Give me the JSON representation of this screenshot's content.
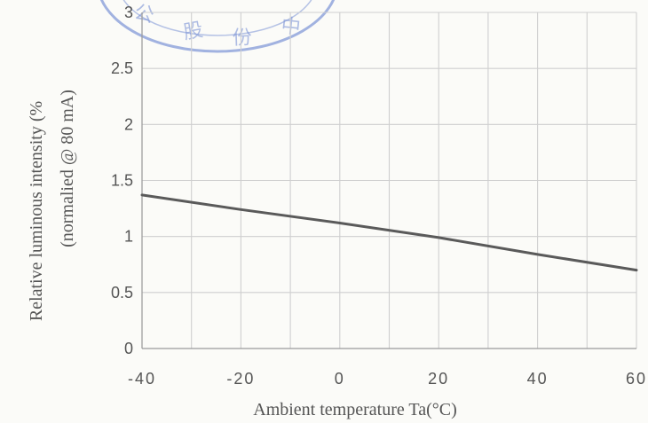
{
  "chart_data": {
    "type": "line",
    "title": "",
    "xlabel": "Ambient temperature Ta(°C)",
    "ylabel_line1": "Relative luminous intensity (%",
    "ylabel_line2": "(normalied @ 80 mA)",
    "xlim": [
      -40,
      60
    ],
    "ylim": [
      0,
      3
    ],
    "x_ticks": [
      -40,
      -20,
      0,
      20,
      40,
      60
    ],
    "y_ticks": [
      0,
      0.5,
      1,
      1.5,
      2,
      2.5,
      3
    ],
    "x_tick_labels": [
      "-40",
      "-20",
      "0",
      "20",
      "40",
      "60"
    ],
    "y_tick_labels": [
      "0",
      "0.5",
      "1",
      "1.5",
      "2",
      "2.5",
      "3"
    ],
    "x_minor_step": 10,
    "grid": true,
    "series": [
      {
        "x": [
          -40,
          -20,
          0,
          20,
          40,
          60
        ],
        "y": [
          1.37,
          1.24,
          1.12,
          0.99,
          0.84,
          0.7
        ],
        "color": "#5a5a5a"
      }
    ]
  },
  "stamp": {
    "text": "股份 中 公",
    "color": "#7b93d6"
  }
}
